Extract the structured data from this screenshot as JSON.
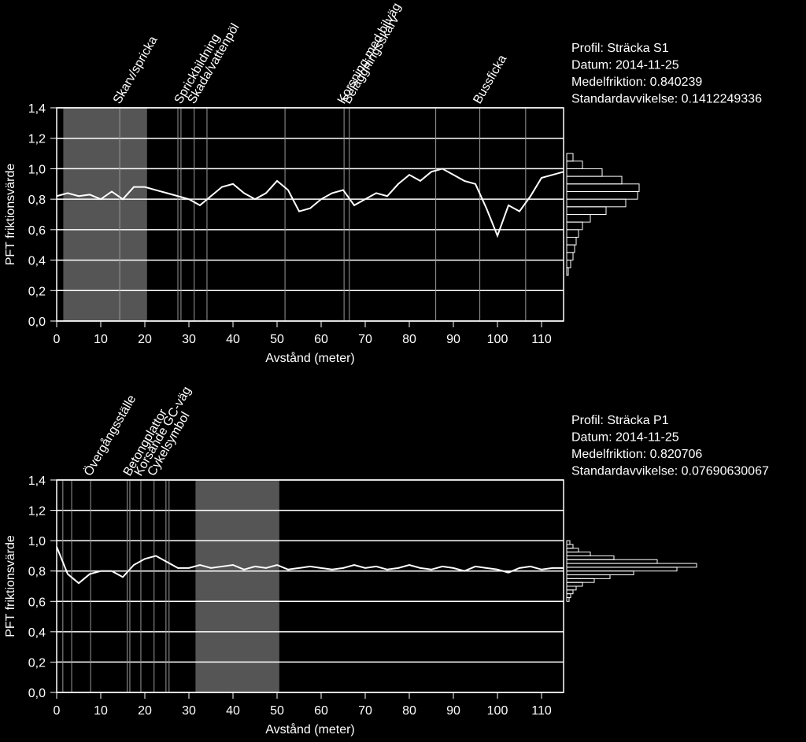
{
  "chart_data": [
    {
      "type": "line",
      "info": [
        "Profil: Sträcka S1",
        "Datum: 2014-11-25",
        "Medelfriktion: 0.840239",
        "Standardavvikelse: 0.1412249336"
      ],
      "x_label": "Avstånd (meter)",
      "y_label": "PFT friktionsvärde",
      "xlim": [
        0,
        115
      ],
      "xticks": [
        0,
        10,
        20,
        30,
        40,
        50,
        60,
        70,
        80,
        90,
        100,
        110
      ],
      "ylim": [
        0,
        1.4
      ],
      "yticks": [
        {
          "value": 0,
          "label": "0,0"
        },
        {
          "value": 0.2,
          "label": "0,2"
        },
        {
          "value": 0.4,
          "label": "0,4"
        },
        {
          "value": 0.6,
          "label": "0,6"
        },
        {
          "value": 0.8,
          "label": "0,8"
        },
        {
          "value": 1.0,
          "label": "1,0"
        },
        {
          "value": 1.2,
          "label": "1,2"
        },
        {
          "value": 1.4,
          "label": "1,4"
        }
      ],
      "grid": true,
      "shaded": [
        1.5,
        20.5
      ],
      "annotations": [
        {
          "label": "Skarv/spricka",
          "x": 14.3
        },
        {
          "label": "Sprickbildning",
          "x": 28.2
        },
        {
          "label": "Skada/vattenpöl",
          "x": 31.2
        },
        {
          "label": "Korsning med bilväg",
          "x": 65.2
        },
        {
          "label": "Beläggningsskarv",
          "x": 66.4
        },
        {
          "label": "Bussficka",
          "x": 96
        }
      ],
      "lines": [
        27.5,
        34.1,
        51.8,
        86,
        106.4
      ],
      "series": [
        {
          "color": "#ffffff",
          "x": [
            0,
            2.5,
            5,
            7.5,
            10,
            12.5,
            15,
            17.5,
            20,
            22.5,
            25,
            27.5,
            30,
            32.5,
            35,
            37.5,
            40,
            42.5,
            45,
            47.5,
            50,
            52.5,
            55,
            57.5,
            60,
            62.5,
            65,
            67.5,
            70,
            72.5,
            75,
            77.5,
            80,
            82.5,
            85,
            87.5,
            90,
            92.5,
            95,
            97.5,
            100,
            102.5,
            105,
            107.5,
            110,
            112.5,
            115
          ],
          "values": [
            0.82,
            0.84,
            0.82,
            0.83,
            0.8,
            0.85,
            0.8,
            0.88,
            0.88,
            0.86,
            0.84,
            0.82,
            0.8,
            0.76,
            0.82,
            0.88,
            0.9,
            0.84,
            0.8,
            0.84,
            0.92,
            0.86,
            0.72,
            0.74,
            0.8,
            0.84,
            0.86,
            0.76,
            0.8,
            0.84,
            0.82,
            0.9,
            0.96,
            0.92,
            0.98,
            1.0,
            0.96,
            0.92,
            0.9,
            0.74,
            0.56,
            0.76,
            0.72,
            0.82,
            0.94,
            0.96,
            0.98
          ]
        }
      ],
      "histogram": {
        "bins": [
          0.3,
          0.35,
          0.4,
          0.45,
          0.5,
          0.55,
          0.6,
          0.65,
          0.7,
          0.75,
          0.8,
          0.85,
          0.9,
          0.95,
          1.0,
          1.05,
          1.1
        ],
        "counts": [
          2,
          5,
          8,
          10,
          12,
          15,
          20,
          30,
          50,
          75,
          90,
          92,
          70,
          45,
          20,
          8
        ]
      }
    },
    {
      "type": "line",
      "info": [
        "Profil: Sträcka P1",
        "Datum: 2014-11-25",
        "Medelfriktion: 0.820706",
        "Standardavvikelse: 0.07690630067"
      ],
      "x_label": "Avstånd (meter)",
      "y_label": "PFT friktionsvärde",
      "xlim": [
        0,
        115
      ],
      "xticks": [
        0,
        10,
        20,
        30,
        40,
        50,
        60,
        70,
        80,
        90,
        100,
        110
      ],
      "ylim": [
        0,
        1.4
      ],
      "yticks": [
        {
          "value": 0,
          "label": "0,0"
        },
        {
          "value": 0.2,
          "label": "0,2"
        },
        {
          "value": 0.4,
          "label": "0,4"
        },
        {
          "value": 0.6,
          "label": "0,6"
        },
        {
          "value": 0.8,
          "label": "0,8"
        },
        {
          "value": 1.0,
          "label": "1,0"
        },
        {
          "value": 1.2,
          "label": "1,2"
        },
        {
          "value": 1.4,
          "label": "1,4"
        }
      ],
      "grid": true,
      "shaded": [
        31.5,
        50.5
      ],
      "annotations": [
        {
          "label": "Övergångsställe",
          "x": 7.7
        },
        {
          "label": "Betongplattor",
          "x": 16.6
        },
        {
          "label": "Korsande GC-väg",
          "x": 19.1
        },
        {
          "label": "Cykelsymbol",
          "x": 22.1
        }
      ],
      "lines": [
        1.4,
        3.4,
        16,
        24.8,
        25.5
      ],
      "series": [
        {
          "color": "#ffffff",
          "x": [
            0,
            2.5,
            5,
            7.5,
            10,
            12.5,
            15,
            17.5,
            20,
            22.5,
            25,
            27.5,
            30,
            32.5,
            35,
            37.5,
            40,
            42.5,
            45,
            47.5,
            50,
            52.5,
            55,
            57.5,
            60,
            62.5,
            65,
            67.5,
            70,
            72.5,
            75,
            77.5,
            80,
            82.5,
            85,
            87.5,
            90,
            92.5,
            95,
            97.5,
            100,
            102.5,
            105,
            107.5,
            110,
            112.5,
            115
          ],
          "values": [
            0.96,
            0.78,
            0.72,
            0.78,
            0.8,
            0.8,
            0.76,
            0.84,
            0.88,
            0.9,
            0.86,
            0.82,
            0.82,
            0.84,
            0.82,
            0.83,
            0.84,
            0.81,
            0.83,
            0.82,
            0.84,
            0.81,
            0.82,
            0.83,
            0.82,
            0.81,
            0.82,
            0.84,
            0.82,
            0.83,
            0.81,
            0.82,
            0.84,
            0.82,
            0.81,
            0.83,
            0.82,
            0.8,
            0.83,
            0.82,
            0.81,
            0.79,
            0.82,
            0.83,
            0.81,
            0.82,
            0.82
          ]
        }
      ],
      "histogram": {
        "bins": [
          0.6,
          0.625,
          0.65,
          0.675,
          0.7,
          0.725,
          0.75,
          0.775,
          0.8,
          0.825,
          0.85,
          0.875,
          0.9,
          0.925,
          0.95,
          0.975,
          1.0
        ],
        "counts": [
          3,
          5,
          8,
          12,
          20,
          35,
          55,
          85,
          140,
          165,
          115,
          60,
          30,
          15,
          8,
          4
        ]
      }
    }
  ]
}
